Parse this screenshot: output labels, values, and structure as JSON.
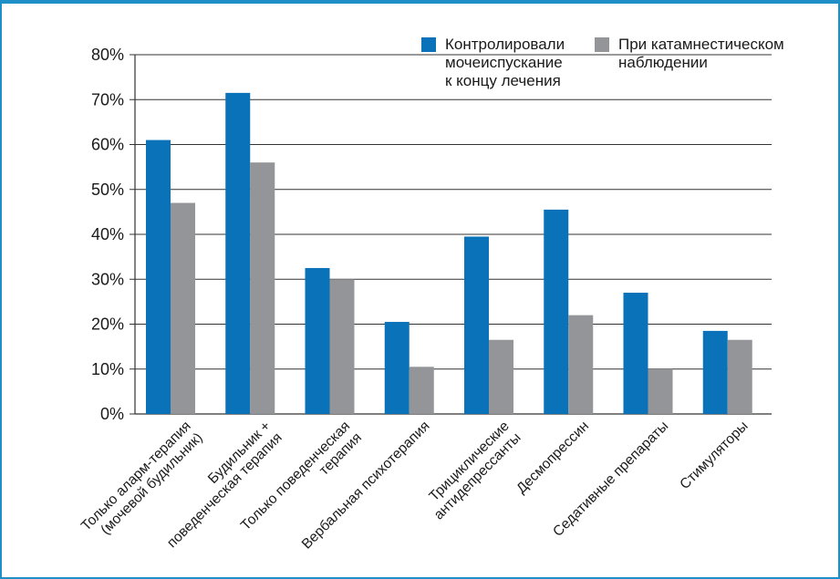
{
  "chart_data": {
    "type": "bar",
    "title": "",
    "xlabel": "",
    "ylabel": "",
    "ylim": [
      0,
      80
    ],
    "grid": true,
    "legend_position": "top-right",
    "y_ticks": [
      "0%",
      "10%",
      "20%",
      "30%",
      "40%",
      "50%",
      "60%",
      "70%",
      "80%"
    ],
    "categories": [
      [
        "Только аларм-терапия",
        "(мочевой будильник)"
      ],
      [
        "Будильник +",
        "поведенческая терапия"
      ],
      [
        "Только поведенческая",
        "терапия"
      ],
      [
        "Вербальная психотерапия"
      ],
      [
        "Трициклические",
        "антидепрессанты"
      ],
      [
        "Десмопрессин"
      ],
      [
        "Седативные препараты"
      ],
      [
        "Стимуляторы"
      ]
    ],
    "series": [
      {
        "name": [
          "Контролировали",
          "мочеиспускание",
          "к концу лечения"
        ],
        "color": "#0a72b8",
        "values": [
          61,
          71.5,
          32.5,
          20.5,
          39.5,
          45.5,
          27,
          18.5
        ]
      },
      {
        "name": [
          "При катамнестическом",
          "наблюдении"
        ],
        "color": "#939598",
        "values": [
          47,
          56,
          30,
          10.5,
          16.5,
          22,
          10,
          16.5
        ]
      }
    ]
  }
}
